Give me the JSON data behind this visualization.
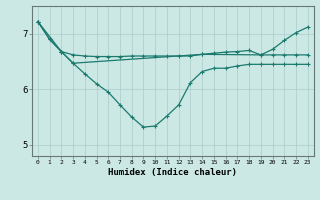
{
  "xlabel": "Humidex (Indice chaleur)",
  "bg_color": "#cce8e4",
  "grid_color": "#aacccc",
  "line_color": "#1a7a6e",
  "xlim": [
    -0.5,
    23.5
  ],
  "ylim": [
    4.8,
    7.5
  ],
  "xticks": [
    0,
    1,
    2,
    3,
    4,
    5,
    6,
    7,
    8,
    9,
    10,
    11,
    12,
    13,
    14,
    15,
    16,
    17,
    18,
    19,
    20,
    21,
    22,
    23
  ],
  "yticks": [
    5,
    6,
    7
  ],
  "line1_x": [
    0,
    1,
    2,
    3,
    4,
    5,
    6,
    7,
    8,
    9,
    10,
    11,
    12,
    13,
    14,
    15,
    16,
    17,
    18,
    19,
    20,
    21,
    22,
    23
  ],
  "line1_y": [
    7.22,
    6.9,
    6.68,
    6.62,
    6.6,
    6.59,
    6.59,
    6.59,
    6.6,
    6.6,
    6.6,
    6.6,
    6.6,
    6.6,
    6.63,
    6.65,
    6.67,
    6.68,
    6.7,
    6.62,
    6.62,
    6.62,
    6.62,
    6.62
  ],
  "line2_x": [
    0,
    1,
    2,
    3,
    4,
    5,
    6,
    7,
    8,
    9,
    10,
    11,
    12,
    13,
    14,
    15,
    16,
    17,
    18,
    19,
    20,
    21,
    22,
    23
  ],
  "line2_y": [
    7.22,
    6.9,
    6.68,
    6.47,
    6.28,
    6.1,
    5.95,
    5.72,
    5.5,
    5.32,
    5.34,
    5.52,
    5.72,
    6.12,
    6.32,
    6.38,
    6.38,
    6.42,
    6.45,
    6.45,
    6.45,
    6.45,
    6.45,
    6.45
  ],
  "line3_x": [
    0,
    2,
    3,
    14,
    19,
    20,
    21,
    22,
    23
  ],
  "line3_y": [
    7.22,
    6.68,
    6.47,
    6.63,
    6.62,
    6.72,
    6.88,
    7.02,
    7.12
  ]
}
